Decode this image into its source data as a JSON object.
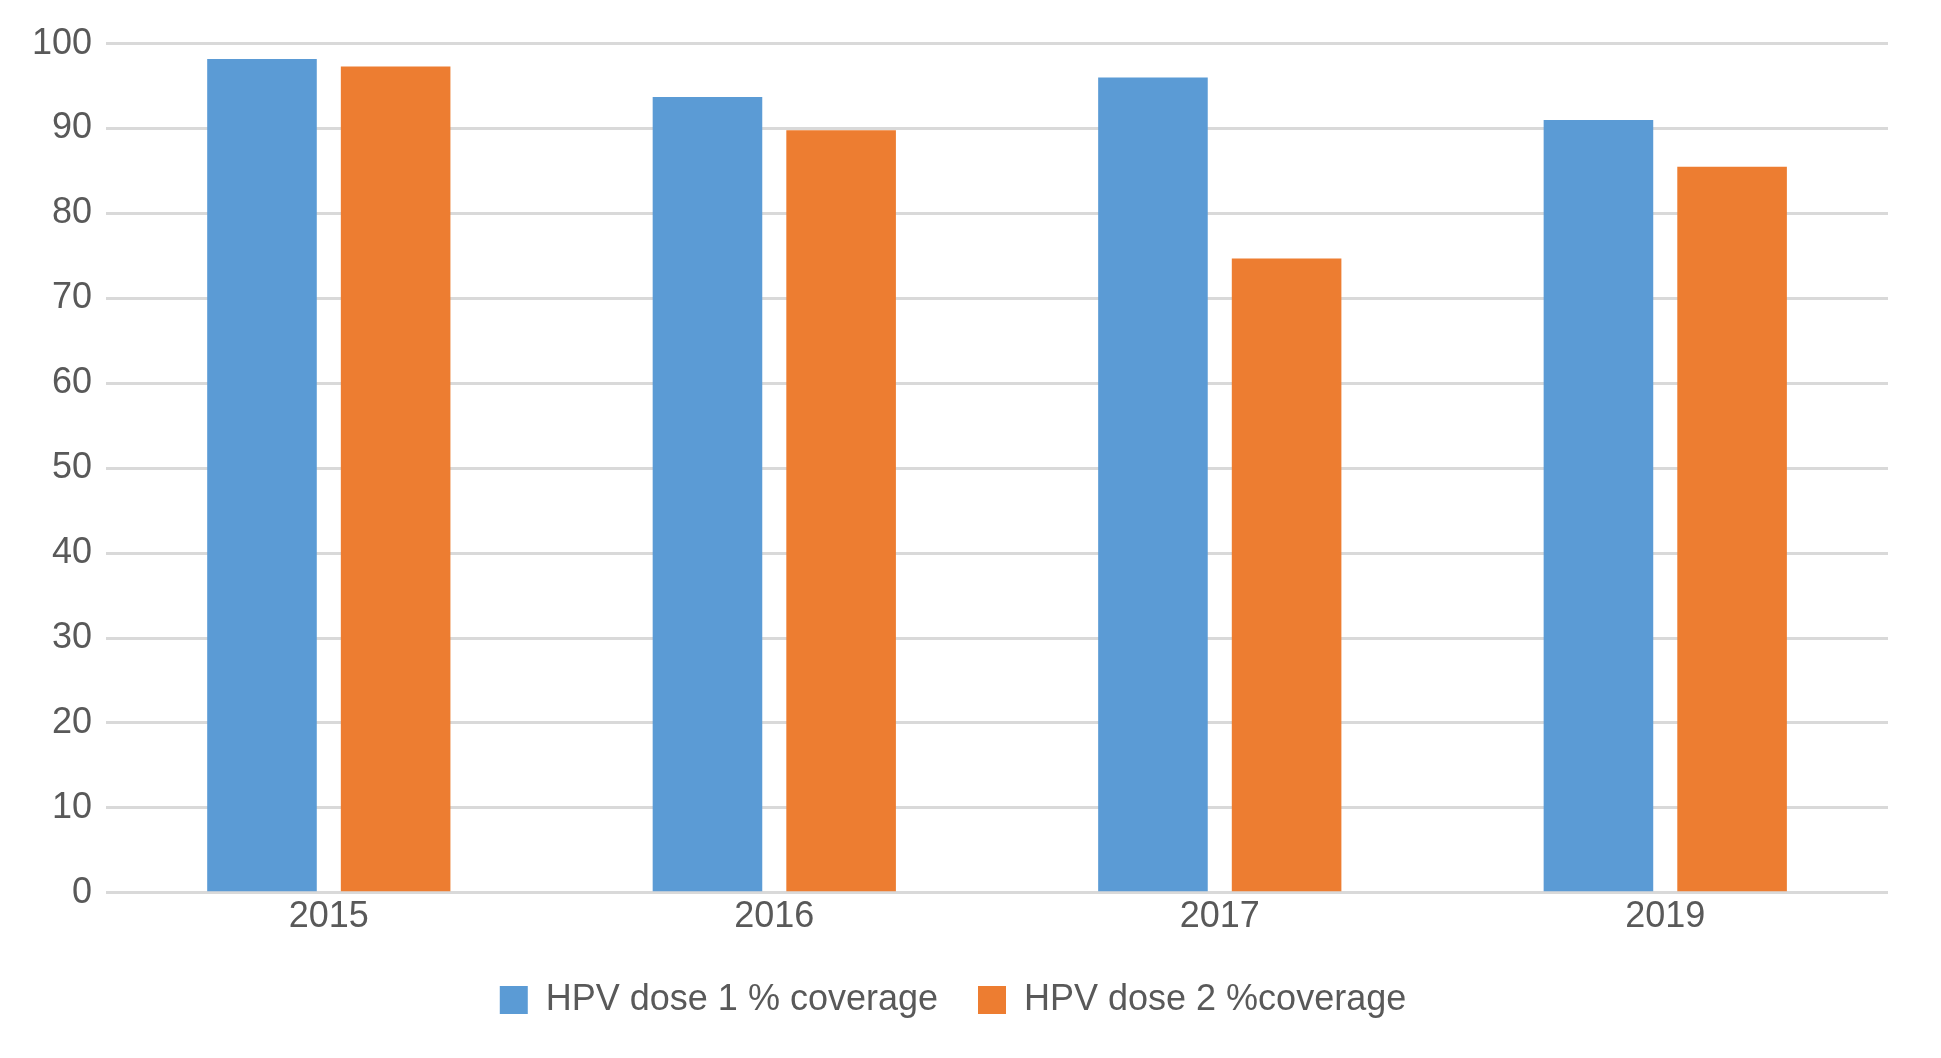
{
  "chart_data": {
    "type": "bar",
    "categories": [
      "2015",
      "2016",
      "2017",
      "2019"
    ],
    "series": [
      {
        "name": "HPV dose 1 % coverage",
        "color": "#5b9bd5",
        "values": [
          98.2,
          93.7,
          96.0,
          91.0
        ]
      },
      {
        "name": "HPV dose 2 %coverage",
        "color": "#ed7d31",
        "values": [
          97.3,
          89.8,
          74.7,
          85.5
        ]
      }
    ],
    "ylim": [
      0,
      100
    ],
    "yticks": [
      0,
      10,
      20,
      30,
      40,
      50,
      60,
      70,
      80,
      90,
      100
    ],
    "grid": "y",
    "legend": "bottom"
  }
}
